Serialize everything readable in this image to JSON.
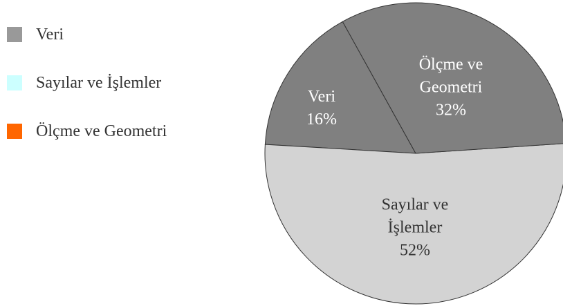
{
  "chart_data": {
    "type": "pie",
    "categories": [
      "Veri",
      "Sayılar ve İşlemler",
      "Ölçme ve Geometri"
    ],
    "values": [
      16,
      52,
      32
    ],
    "value_labels": [
      "16%",
      "52%",
      "32%"
    ],
    "colors": [
      "#808080",
      "#d3d3d3",
      "#808080"
    ],
    "legend_colors": [
      "#999999",
      "#ccffff",
      "#ff6600"
    ],
    "label_colors": [
      "#ffffff",
      "#333333",
      "#ffffff"
    ],
    "legend": "left"
  }
}
